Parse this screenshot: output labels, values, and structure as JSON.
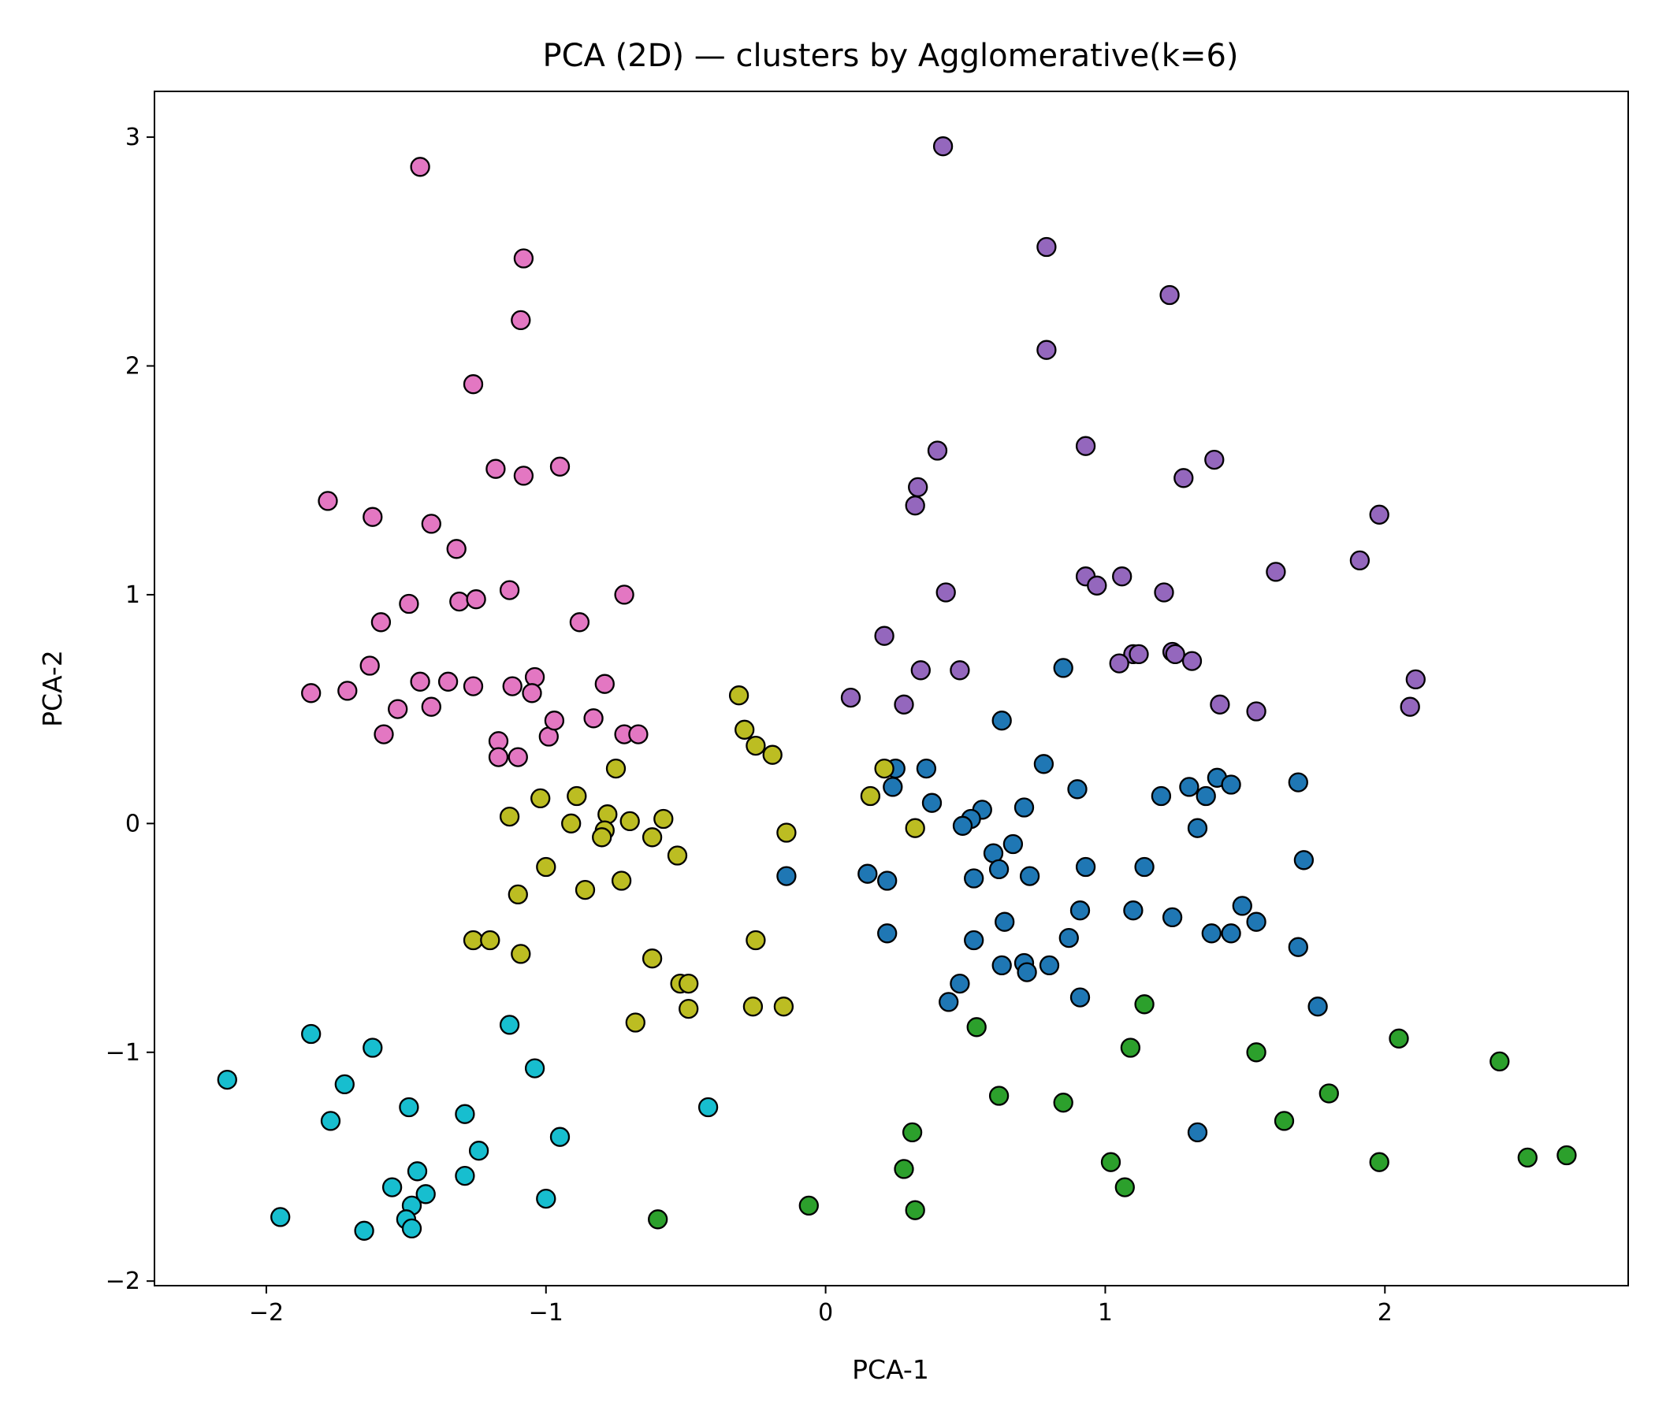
{
  "chart_data": {
    "type": "scatter",
    "title": "PCA (2D) — clusters by Agglomerative(k=6)",
    "xlabel": "PCA-1",
    "ylabel": "PCA-2",
    "xlim": [
      -2.4,
      2.87
    ],
    "ylim": [
      -2.02,
      3.2
    ],
    "xticks": [
      -2,
      -1,
      0,
      1,
      2
    ],
    "yticks": [
      -2,
      -1,
      0,
      1,
      2,
      3
    ],
    "xtick_labels": [
      "−2",
      "−1",
      "0",
      "1",
      "2"
    ],
    "ytick_labels": [
      "−2",
      "−1",
      "0",
      "1",
      "2",
      "3"
    ],
    "grid": false,
    "series": [
      {
        "color": "#e377c2",
        "points": [
          [
            -1.45,
            2.87
          ],
          [
            -1.08,
            2.47
          ],
          [
            -1.09,
            2.2
          ],
          [
            -1.26,
            1.92
          ],
          [
            -1.18,
            1.55
          ],
          [
            -1.08,
            1.52
          ],
          [
            -0.95,
            1.56
          ],
          [
            -1.78,
            1.41
          ],
          [
            -1.62,
            1.34
          ],
          [
            -1.41,
            1.31
          ],
          [
            -1.32,
            1.2
          ],
          [
            -1.13,
            1.02
          ],
          [
            -1.31,
            0.97
          ],
          [
            -1.25,
            0.98
          ],
          [
            -1.49,
            0.96
          ],
          [
            -1.59,
            0.88
          ],
          [
            -0.88,
            0.88
          ],
          [
            -0.72,
            1.0
          ],
          [
            -1.63,
            0.69
          ],
          [
            -1.84,
            0.57
          ],
          [
            -1.71,
            0.58
          ],
          [
            -1.53,
            0.5
          ],
          [
            -1.45,
            0.62
          ],
          [
            -1.35,
            0.62
          ],
          [
            -1.41,
            0.51
          ],
          [
            -1.26,
            0.6
          ],
          [
            -1.12,
            0.6
          ],
          [
            -1.04,
            0.64
          ],
          [
            -1.05,
            0.57
          ],
          [
            -0.79,
            0.61
          ],
          [
            -1.58,
            0.39
          ],
          [
            -0.83,
            0.46
          ],
          [
            -0.99,
            0.38
          ],
          [
            -0.97,
            0.45
          ],
          [
            -1.17,
            0.36
          ],
          [
            -1.17,
            0.29
          ],
          [
            -1.1,
            0.29
          ],
          [
            -0.72,
            0.39
          ],
          [
            -0.67,
            0.39
          ]
        ]
      },
      {
        "color": "#9467bd",
        "points": [
          [
            0.42,
            2.96
          ],
          [
            0.79,
            2.52
          ],
          [
            1.23,
            2.31
          ],
          [
            0.79,
            2.07
          ],
          [
            0.4,
            1.63
          ],
          [
            0.93,
            1.65
          ],
          [
            1.39,
            1.59
          ],
          [
            0.33,
            1.47
          ],
          [
            0.32,
            1.39
          ],
          [
            1.28,
            1.51
          ],
          [
            1.98,
            1.35
          ],
          [
            1.91,
            1.15
          ],
          [
            1.61,
            1.1
          ],
          [
            0.93,
            1.08
          ],
          [
            1.06,
            1.08
          ],
          [
            0.97,
            1.04
          ],
          [
            1.21,
            1.01
          ],
          [
            0.43,
            1.01
          ],
          [
            0.21,
            0.82
          ],
          [
            1.1,
            0.74
          ],
          [
            1.12,
            0.74
          ],
          [
            1.24,
            0.75
          ],
          [
            1.25,
            0.74
          ],
          [
            1.05,
            0.7
          ],
          [
            1.31,
            0.71
          ],
          [
            0.34,
            0.67
          ],
          [
            0.48,
            0.67
          ],
          [
            2.11,
            0.63
          ],
          [
            0.09,
            0.55
          ],
          [
            0.28,
            0.52
          ],
          [
            1.41,
            0.52
          ],
          [
            1.54,
            0.49
          ],
          [
            2.09,
            0.51
          ]
        ]
      },
      {
        "color": "#1f77b4",
        "points": [
          [
            0.85,
            0.68
          ],
          [
            0.63,
            0.45
          ],
          [
            0.78,
            0.26
          ],
          [
            0.25,
            0.24
          ],
          [
            0.36,
            0.24
          ],
          [
            0.24,
            0.16
          ],
          [
            0.38,
            0.09
          ],
          [
            0.9,
            0.15
          ],
          [
            1.69,
            0.18
          ],
          [
            1.4,
            0.2
          ],
          [
            1.45,
            0.17
          ],
          [
            1.3,
            0.16
          ],
          [
            1.2,
            0.12
          ],
          [
            1.36,
            0.12
          ],
          [
            0.71,
            0.07
          ],
          [
            0.56,
            0.06
          ],
          [
            0.52,
            0.02
          ],
          [
            0.49,
            -0.01
          ],
          [
            0.67,
            -0.09
          ],
          [
            1.33,
            -0.02
          ],
          [
            0.6,
            -0.13
          ],
          [
            0.62,
            -0.2
          ],
          [
            0.93,
            -0.19
          ],
          [
            1.14,
            -0.19
          ],
          [
            1.71,
            -0.16
          ],
          [
            -0.14,
            -0.23
          ],
          [
            0.15,
            -0.22
          ],
          [
            0.22,
            -0.25
          ],
          [
            0.53,
            -0.24
          ],
          [
            0.73,
            -0.23
          ],
          [
            1.49,
            -0.36
          ],
          [
            0.91,
            -0.38
          ],
          [
            1.1,
            -0.38
          ],
          [
            1.24,
            -0.41
          ],
          [
            1.54,
            -0.43
          ],
          [
            0.64,
            -0.43
          ],
          [
            0.22,
            -0.48
          ],
          [
            0.87,
            -0.5
          ],
          [
            1.38,
            -0.48
          ],
          [
            1.45,
            -0.48
          ],
          [
            0.53,
            -0.51
          ],
          [
            1.69,
            -0.54
          ],
          [
            0.63,
            -0.62
          ],
          [
            0.71,
            -0.61
          ],
          [
            0.8,
            -0.62
          ],
          [
            0.72,
            -0.65
          ],
          [
            0.48,
            -0.7
          ],
          [
            0.44,
            -0.78
          ],
          [
            0.91,
            -0.76
          ],
          [
            1.76,
            -0.8
          ],
          [
            1.33,
            -1.35
          ]
        ]
      },
      {
        "color": "#bcbd22",
        "points": [
          [
            -0.31,
            0.56
          ],
          [
            -0.29,
            0.41
          ],
          [
            -0.25,
            0.34
          ],
          [
            -0.19,
            0.3
          ],
          [
            -0.75,
            0.24
          ],
          [
            0.21,
            0.24
          ],
          [
            0.16,
            0.12
          ],
          [
            -1.02,
            0.11
          ],
          [
            -0.89,
            0.12
          ],
          [
            -0.78,
            0.04
          ],
          [
            -1.13,
            0.03
          ],
          [
            -0.91,
            0.0
          ],
          [
            -0.7,
            0.01
          ],
          [
            -0.58,
            0.02
          ],
          [
            -0.79,
            -0.03
          ],
          [
            -0.8,
            -0.06
          ],
          [
            -0.62,
            -0.06
          ],
          [
            -0.14,
            -0.04
          ],
          [
            0.32,
            -0.02
          ],
          [
            -0.53,
            -0.14
          ],
          [
            -1.0,
            -0.19
          ],
          [
            -0.73,
            -0.25
          ],
          [
            -0.86,
            -0.29
          ],
          [
            -1.1,
            -0.31
          ],
          [
            -1.26,
            -0.51
          ],
          [
            -1.2,
            -0.51
          ],
          [
            -0.25,
            -0.51
          ],
          [
            -1.09,
            -0.57
          ],
          [
            -0.62,
            -0.59
          ],
          [
            -0.52,
            -0.7
          ],
          [
            -0.49,
            -0.7
          ],
          [
            -0.26,
            -0.8
          ],
          [
            -0.49,
            -0.81
          ],
          [
            -0.15,
            -0.8
          ],
          [
            -0.68,
            -0.87
          ]
        ]
      },
      {
        "color": "#17becf",
        "points": [
          [
            -1.84,
            -0.92
          ],
          [
            -1.62,
            -0.98
          ],
          [
            -1.13,
            -0.88
          ],
          [
            -2.14,
            -1.12
          ],
          [
            -1.72,
            -1.14
          ],
          [
            -1.04,
            -1.07
          ],
          [
            -1.49,
            -1.24
          ],
          [
            -1.77,
            -1.3
          ],
          [
            -1.29,
            -1.27
          ],
          [
            -1.24,
            -1.43
          ],
          [
            -0.95,
            -1.37
          ],
          [
            -0.42,
            -1.24
          ],
          [
            -1.46,
            -1.52
          ],
          [
            -1.29,
            -1.54
          ],
          [
            -1.55,
            -1.59
          ],
          [
            -1.43,
            -1.62
          ],
          [
            -1.48,
            -1.67
          ],
          [
            -1.0,
            -1.64
          ],
          [
            -1.95,
            -1.72
          ],
          [
            -1.5,
            -1.73
          ],
          [
            -1.65,
            -1.78
          ],
          [
            -1.48,
            -1.77
          ]
        ]
      },
      {
        "color": "#2ca02c",
        "points": [
          [
            0.54,
            -0.89
          ],
          [
            1.14,
            -0.79
          ],
          [
            1.09,
            -0.98
          ],
          [
            1.54,
            -1.0
          ],
          [
            2.05,
            -0.94
          ],
          [
            2.41,
            -1.04
          ],
          [
            0.62,
            -1.19
          ],
          [
            0.85,
            -1.22
          ],
          [
            1.8,
            -1.18
          ],
          [
            0.31,
            -1.35
          ],
          [
            1.64,
            -1.3
          ],
          [
            0.28,
            -1.51
          ],
          [
            1.02,
            -1.48
          ],
          [
            1.98,
            -1.48
          ],
          [
            2.51,
            -1.46
          ],
          [
            2.65,
            -1.45
          ],
          [
            0.32,
            -1.69
          ],
          [
            1.07,
            -1.59
          ],
          [
            -0.06,
            -1.67
          ],
          [
            -0.6,
            -1.73
          ]
        ]
      }
    ]
  }
}
